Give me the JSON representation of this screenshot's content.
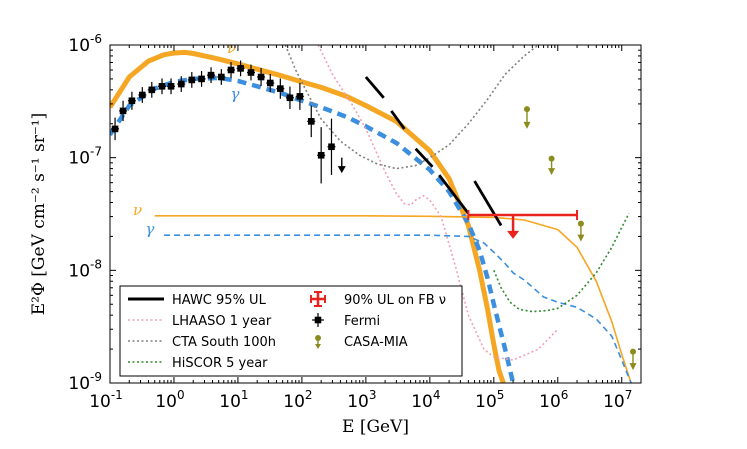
{
  "chart_data": {
    "type": "line",
    "xlabel": "E [GeV]",
    "ylabel": "E²Φ [GeV cm⁻² s⁻¹ sr⁻¹]",
    "xscale": "log",
    "yscale": "log",
    "xlim": [
      0.1,
      20000000
    ],
    "ylim": [
      1e-09,
      1e-06
    ],
    "x_ticks": [
      {
        "value": 0.1,
        "base": "10",
        "exp": "-1"
      },
      {
        "value": 1,
        "base": "10",
        "exp": "0"
      },
      {
        "value": 10,
        "base": "10",
        "exp": "1"
      },
      {
        "value": 100,
        "base": "10",
        "exp": "2"
      },
      {
        "value": 1000,
        "base": "10",
        "exp": "3"
      },
      {
        "value": 10000,
        "base": "10",
        "exp": "4"
      },
      {
        "value": 100000,
        "base": "10",
        "exp": "5"
      },
      {
        "value": 1000000,
        "base": "10",
        "exp": "6"
      },
      {
        "value": 10000000,
        "base": "10",
        "exp": "7"
      }
    ],
    "y_ticks": [
      {
        "value": 1e-09,
        "base": "10",
        "exp": "-9"
      },
      {
        "value": 1e-08,
        "base": "10",
        "exp": "-8"
      },
      {
        "value": 1e-07,
        "base": "10",
        "exp": "-7"
      },
      {
        "value": 1e-06,
        "base": "10",
        "exp": "-6"
      }
    ],
    "curve_labels": [
      {
        "text": "ν",
        "color": "#f5a623",
        "x": 8,
        "y": 8.5e-07
      },
      {
        "text": "γ",
        "color": "#3b8fde",
        "x": 9,
        "y": 3.3e-07
      },
      {
        "text": "ν",
        "color": "#f5a623",
        "x": 0.27,
        "y": 3.1e-08
      },
      {
        "text": "γ",
        "color": "#3b8fde",
        "x": 0.42,
        "y": 2.1e-08
      }
    ],
    "series": [
      {
        "name": "nu_model_thick",
        "color": "#f5a623",
        "width": 5,
        "dash": "",
        "x": [
          0.1,
          0.2,
          0.4,
          0.7,
          1,
          1.5,
          2,
          3,
          5,
          10,
          20,
          50,
          100,
          200,
          500,
          1000,
          3000,
          10000,
          20000,
          40000,
          60000,
          80000,
          100000,
          120000,
          150000
        ],
        "y": [
          2.8e-07,
          5.2e-07,
          7.2e-07,
          8.2e-07,
          8.5e-07,
          8.6e-07,
          8.4e-07,
          8e-07,
          7.5e-07,
          6.8e-07,
          6.1e-07,
          5.3e-07,
          4.7e-07,
          4.2e-07,
          3.5e-07,
          2.9e-07,
          2.1e-07,
          1.15e-07,
          6.5e-08,
          2.5e-08,
          1e-08,
          4.5e-09,
          2.2e-09,
          1.3e-09,
          9e-10
        ]
      },
      {
        "name": "gamma_model_thick",
        "color": "#3b8fde",
        "width": 4.5,
        "dash": "9 6",
        "x": [
          0.1,
          0.2,
          0.5,
          1,
          2,
          5,
          10,
          20,
          50,
          100,
          200,
          500,
          1000,
          3000,
          10000,
          20000,
          40000,
          60000,
          80000,
          100000,
          150000,
          200000
        ],
        "y": [
          1.6e-07,
          2.9e-07,
          4.1e-07,
          4.7e-07,
          5e-07,
          5.1e-07,
          4.8e-07,
          4.3e-07,
          3.7e-07,
          3.2e-07,
          2.8e-07,
          2.3e-07,
          1.9e-07,
          1.35e-07,
          7.8e-08,
          5e-08,
          2.6e-08,
          1.5e-08,
          8.5e-09,
          5e-09,
          2e-09,
          1e-09
        ]
      },
      {
        "name": "nu_fb_flat",
        "color": "#f5a623",
        "width": 1.6,
        "dash": "",
        "x": [
          0.5,
          2,
          10,
          100,
          1000,
          10000,
          100000,
          300000,
          1000000,
          2000000,
          4000000,
          7000000,
          10000000,
          14000000
        ],
        "y": [
          3.05e-08,
          3.05e-08,
          3.05e-08,
          3.05e-08,
          3.05e-08,
          3.02e-08,
          2.95e-08,
          2.8e-08,
          2.3e-08,
          1.6e-08,
          8e-09,
          3.5e-09,
          1.8e-09,
          1e-09
        ]
      },
      {
        "name": "gamma_fb_flat",
        "color": "#3b8fde",
        "width": 1.6,
        "dash": "6 4",
        "x": [
          0.7,
          3,
          10,
          100,
          1000,
          10000,
          40000,
          70000,
          100000,
          150000,
          200000,
          300000,
          600000,
          1000000,
          2000000,
          4000000,
          7000000,
          10000000,
          14000000
        ],
        "y": [
          2.05e-08,
          2.05e-08,
          2.05e-08,
          2.05e-08,
          2.05e-08,
          2.05e-08,
          2e-08,
          1.75e-08,
          1.45e-08,
          1.15e-08,
          9.5e-09,
          8.2e-09,
          5.8e-09,
          5.2e-09,
          4.7e-09,
          3.7e-09,
          2.6e-09,
          1.6e-09,
          1e-09
        ]
      },
      {
        "name": "LHAASO 1 year",
        "color": "#f0a0b8",
        "width": 1.6,
        "dash": "2 2.5",
        "x": [
          180,
          300,
          600,
          1000,
          2000,
          3000,
          4000,
          5000,
          6000,
          8000,
          10000,
          15000,
          25000,
          40000,
          70000,
          100000,
          200000,
          500000,
          1000000
        ],
        "y": [
          1e-06,
          5.5e-07,
          3e-07,
          1.8e-07,
          7.5e-08,
          4.8e-08,
          3.9e-08,
          3.8e-08,
          4.2e-08,
          4.6e-08,
          4.2e-08,
          3e-08,
          1.1e-08,
          4e-09,
          2e-09,
          1.7e-09,
          1.6e-09,
          2e-09,
          3e-09
        ]
      },
      {
        "name": "CTA South 100h",
        "color": "#808080",
        "width": 1.6,
        "dash": "2 2.5",
        "x": [
          55,
          80,
          120,
          200,
          400,
          800,
          1500,
          3000,
          6000,
          10000,
          20000,
          40000,
          80000,
          150000,
          300000,
          500000
        ],
        "y": [
          1e-06,
          6e-07,
          3.8e-07,
          2.2e-07,
          1.4e-07,
          1.05e-07,
          8.8e-08,
          8e-08,
          8.5e-08,
          1e-07,
          1.3e-07,
          2e-07,
          3.3e-07,
          5.5e-07,
          8e-07,
          1e-06
        ]
      },
      {
        "name": "HiSCOR 5 year",
        "color": "#2e8b2e",
        "width": 1.6,
        "dash": "2 2.5",
        "x": [
          100000,
          130000,
          180000,
          250000,
          400000,
          700000,
          1000000,
          2000000,
          4000000,
          7000000,
          10000000,
          13000000
        ],
        "y": [
          1e-08,
          7e-09,
          5.2e-09,
          4.5e-09,
          4.3e-09,
          4.4e-09,
          4.6e-09,
          6e-09,
          9.5e-09,
          1.6e-08,
          2.4e-08,
          3.2e-08
        ]
      }
    ],
    "hawc_segments": [
      {
        "x1": 1000,
        "y1": 5.2e-07,
        "x2": 1900,
        "y2": 3.4e-07
      },
      {
        "x1": 2500,
        "y1": 2.6e-07,
        "x2": 4000,
        "y2": 1.8e-07
      },
      {
        "x1": 6000,
        "y1": 1.2e-07,
        "x2": 11000,
        "y2": 8.3e-08
      },
      {
        "x1": 14000,
        "y1": 7e-08,
        "x2": 40000,
        "y2": 3.2e-08
      },
      {
        "x1": 50000,
        "y1": 6.2e-08,
        "x2": 130000,
        "y2": 2.5e-08
      }
    ],
    "fermi": {
      "color": "#000000",
      "points": [
        {
          "x": 0.12,
          "y": 1.8e-07,
          "err": 0.1
        },
        {
          "x": 0.16,
          "y": 2.6e-07,
          "err": 0.09
        },
        {
          "x": 0.22,
          "y": 3.2e-07,
          "err": 0.08
        },
        {
          "x": 0.32,
          "y": 3.6e-07,
          "err": 0.07
        },
        {
          "x": 0.45,
          "y": 4e-07,
          "err": 0.07
        },
        {
          "x": 0.65,
          "y": 4.3e-07,
          "err": 0.07
        },
        {
          "x": 0.9,
          "y": 4.3e-07,
          "err": 0.07
        },
        {
          "x": 1.3,
          "y": 4.5e-07,
          "err": 0.07
        },
        {
          "x": 1.9,
          "y": 4.9e-07,
          "err": 0.07
        },
        {
          "x": 2.7,
          "y": 5e-07,
          "err": 0.07
        },
        {
          "x": 3.8,
          "y": 5.4e-07,
          "err": 0.07
        },
        {
          "x": 5.5,
          "y": 5.2e-07,
          "err": 0.07
        },
        {
          "x": 7.8,
          "y": 6e-07,
          "err": 0.07
        },
        {
          "x": 11,
          "y": 6.2e-07,
          "err": 0.07
        },
        {
          "x": 16,
          "y": 5.7e-07,
          "err": 0.07
        },
        {
          "x": 23,
          "y": 5.2e-07,
          "err": 0.08
        },
        {
          "x": 32,
          "y": 4.6e-07,
          "err": 0.08
        },
        {
          "x": 46,
          "y": 4.1e-07,
          "err": 0.09
        },
        {
          "x": 65,
          "y": 3.4e-07,
          "err": 0.1
        },
        {
          "x": 93,
          "y": 3.5e-07,
          "err": 0.12
        },
        {
          "x": 140,
          "y": 2.1e-07,
          "err": 0.14
        },
        {
          "x": 200,
          "y": 1.05e-07,
          "err": 0.25
        },
        {
          "x": 290,
          "y": 1.25e-07,
          "err": 0.25
        }
      ],
      "upper_limit": {
        "x": 420,
        "y": 1e-07,
        "to": 7.3e-08
      }
    },
    "casa_mia": {
      "color": "#8b8b1e",
      "points": [
        {
          "x": 330000,
          "y": 2.7e-07,
          "to": 1.8e-07
        },
        {
          "x": 800000,
          "y": 9.8e-08,
          "to": 7e-08
        },
        {
          "x": 2300000,
          "y": 2.6e-08,
          "to": 1.8e-08
        },
        {
          "x": 15000000,
          "y": 1.9e-09,
          "to": 1.3e-09
        }
      ]
    },
    "fb_nu_ul": {
      "color": "#e8221c",
      "x_low": 40000,
      "x_high": 2000000,
      "x_center": 200000,
      "y": 3.1e-08,
      "arrow_to": 1.9e-08
    },
    "legend": {
      "placement": "lower-left",
      "entries": [
        {
          "label": "HAWC 95% UL",
          "style": "hawc"
        },
        {
          "label": "90% UL on FB ν",
          "style": "fbul"
        },
        {
          "label": "LHAASO 1 year",
          "style": "lhaaso"
        },
        {
          "label": "Fermi",
          "style": "fermi"
        },
        {
          "label": "CTA South 100h",
          "style": "cta"
        },
        {
          "label": "CASA-MIA",
          "style": "casa"
        },
        {
          "label": "HiSCOR 5 year",
          "style": "hiscor"
        }
      ]
    }
  }
}
